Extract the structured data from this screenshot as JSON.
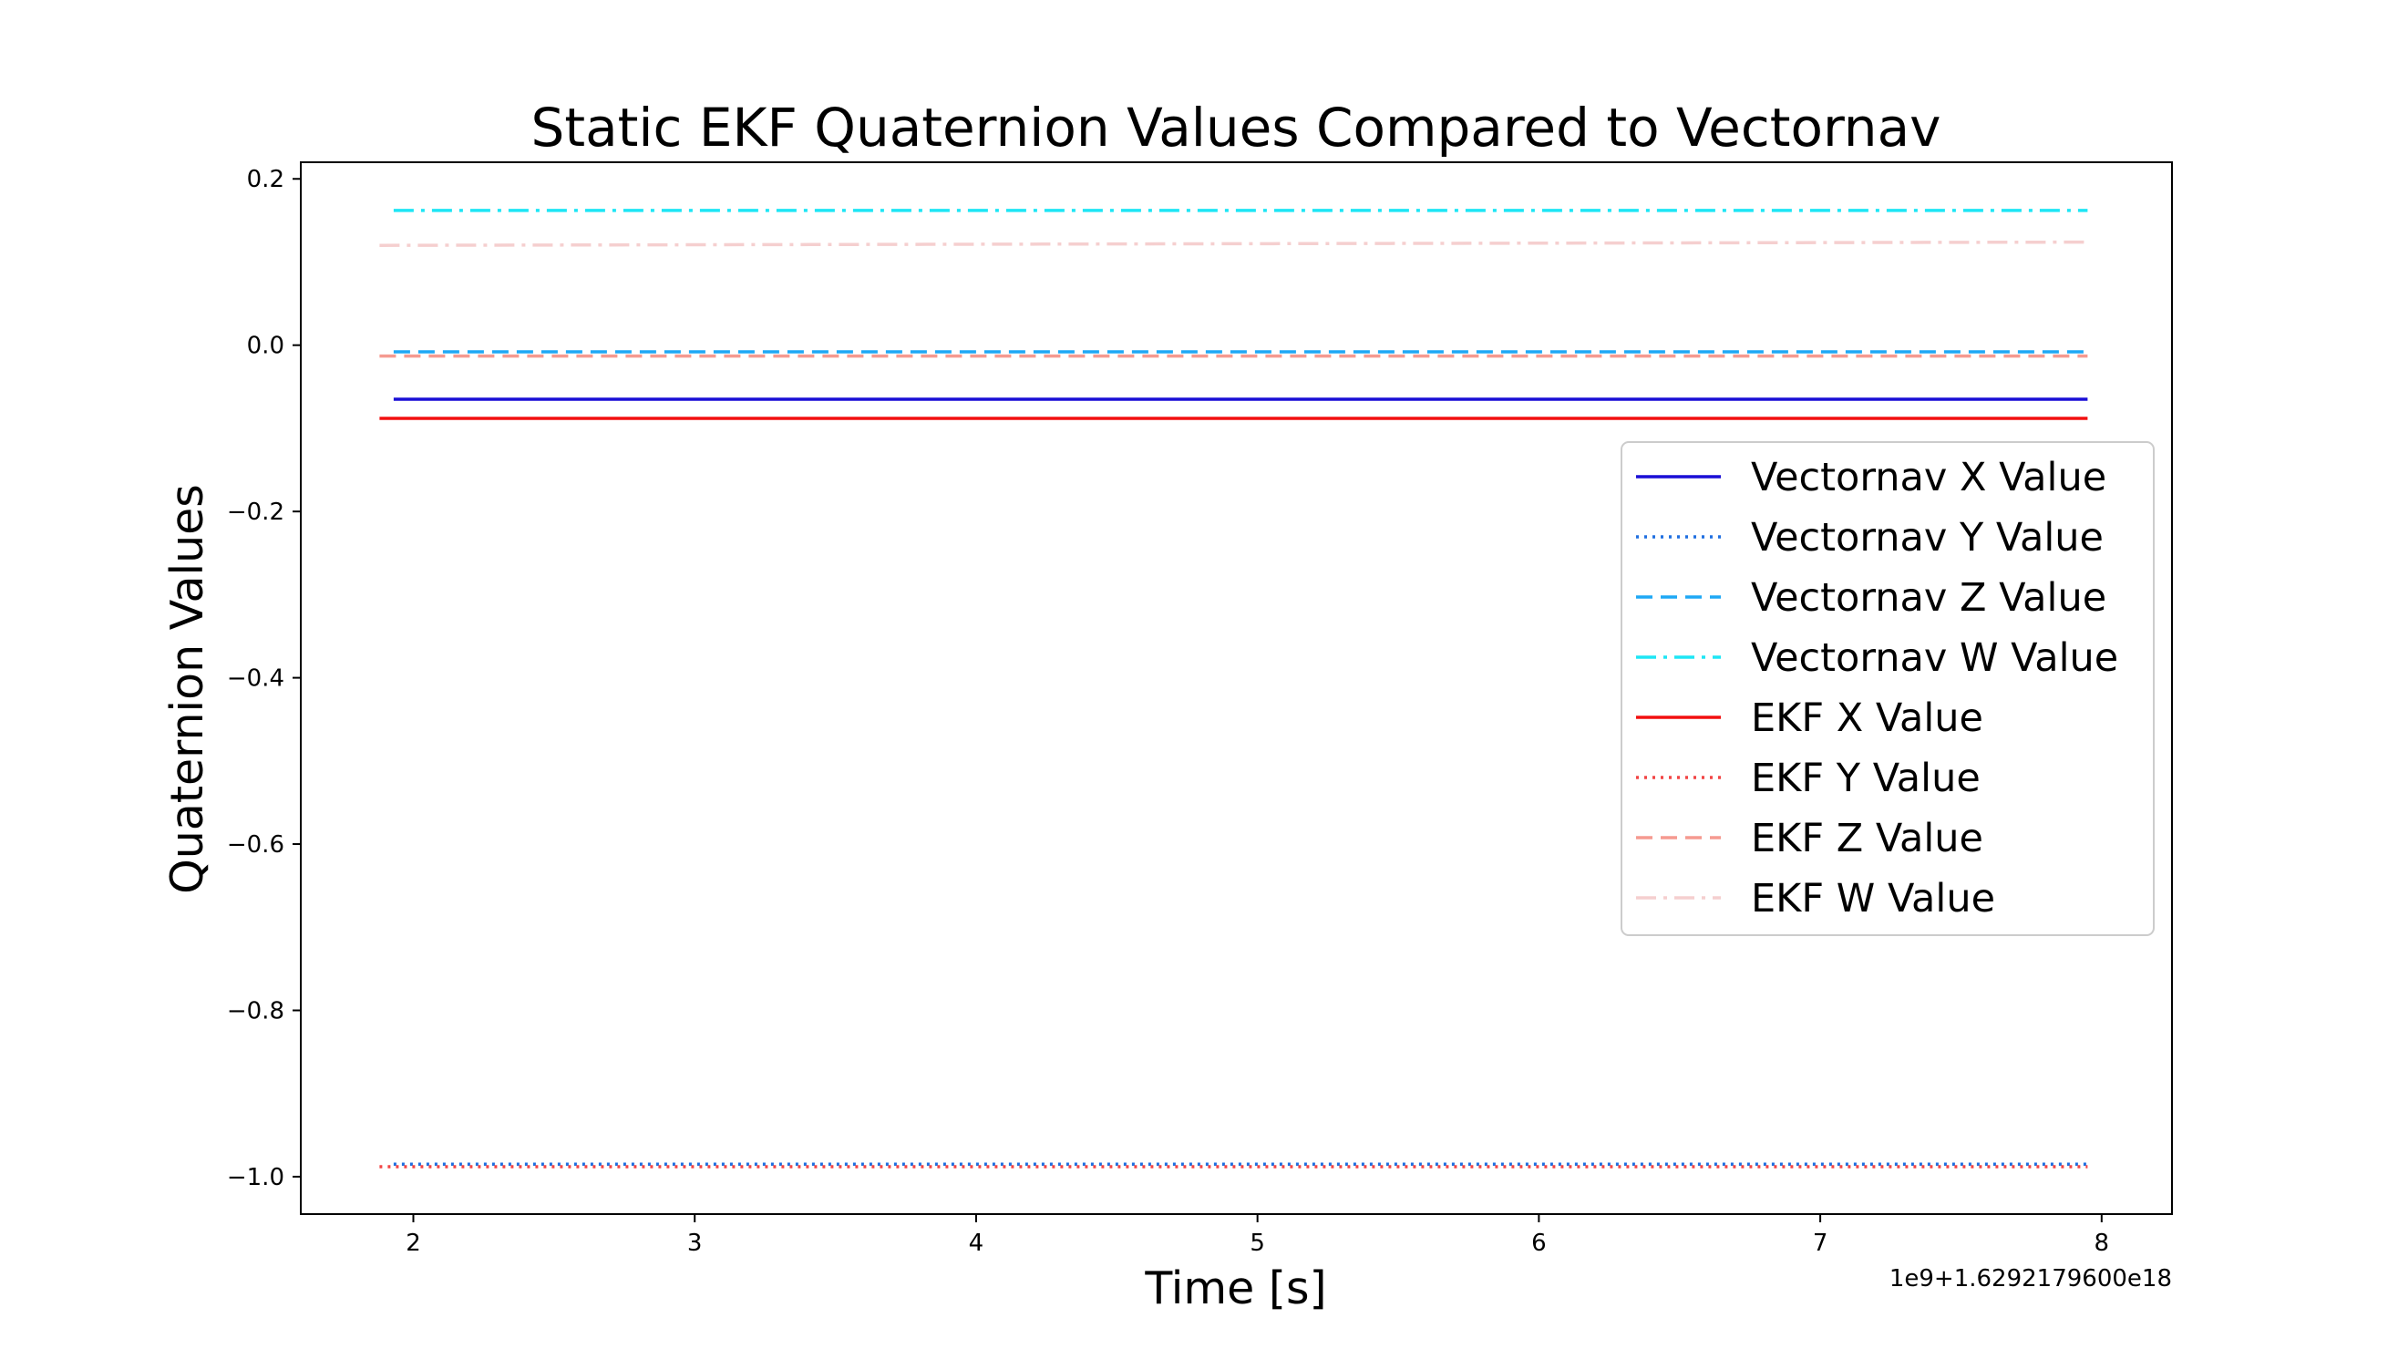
{
  "chart_data": {
    "type": "line",
    "title": "Static EKF Quaternion Values Compared to Vectornav",
    "xlabel": "Time [s]",
    "ylabel": "Quaternion Values",
    "x_offset_label": "1e9+1.6292179600e18",
    "xlim": [
      1.6,
      8.25
    ],
    "ylim": [
      -1.045,
      0.22
    ],
    "xticks": [
      2,
      3,
      4,
      5,
      6,
      7,
      8
    ],
    "xtick_labels": [
      "2",
      "3",
      "4",
      "5",
      "6",
      "7",
      "8"
    ],
    "yticks": [
      0.2,
      0.0,
      -0.2,
      -0.4,
      -0.6,
      -0.8,
      -1.0
    ],
    "ytick_labels": [
      "0.2",
      "0.0",
      "−0.2",
      "−0.4",
      "−0.6",
      "−0.8",
      "−1.0"
    ],
    "grid": false,
    "legend_position": "right",
    "series": [
      {
        "name": "Vectornav X Value",
        "color": "#1a0fd6",
        "style": "solid",
        "x": [
          1.93,
          7.95
        ],
        "y": [
          -0.065,
          -0.065
        ]
      },
      {
        "name": "Vectornav Y Value",
        "color": "#1f6fe0",
        "style": "dotted",
        "x": [
          1.93,
          7.95
        ],
        "y": [
          -0.985,
          -0.985
        ]
      },
      {
        "name": "Vectornav Z Value",
        "color": "#1ea8f5",
        "style": "dashed",
        "x": [
          1.93,
          7.95
        ],
        "y": [
          -0.008,
          -0.008
        ]
      },
      {
        "name": "Vectornav W Value",
        "color": "#1ee6f5",
        "style": "dashdot",
        "x": [
          1.93,
          7.95
        ],
        "y": [
          0.162,
          0.162
        ]
      },
      {
        "name": "EKF X Value",
        "color": "#f21010",
        "style": "solid",
        "x": [
          1.88,
          7.95
        ],
        "y": [
          -0.088,
          -0.088
        ]
      },
      {
        "name": "EKF Y Value",
        "color": "#f24545",
        "style": "dotted",
        "x": [
          1.88,
          7.95
        ],
        "y": [
          -0.988,
          -0.988
        ]
      },
      {
        "name": "EKF Z Value",
        "color": "#f59a90",
        "style": "dashed",
        "x": [
          1.88,
          7.95
        ],
        "y": [
          -0.013,
          -0.013
        ]
      },
      {
        "name": "EKF W Value",
        "color": "#f5cfcf",
        "style": "dashdot",
        "x": [
          1.88,
          7.95
        ],
        "y": [
          0.12,
          0.124
        ]
      }
    ]
  }
}
